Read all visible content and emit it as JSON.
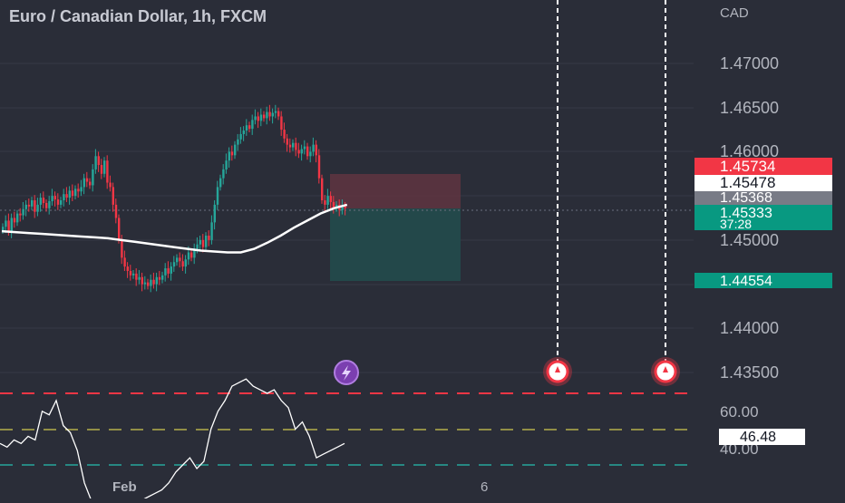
{
  "header": {
    "title": "Euro / Canadian Dollar, 1h, FXCM",
    "currency": "CAD"
  },
  "colors": {
    "background": "#2a2d38",
    "up": "#26a69a",
    "down": "#f23645",
    "ma": "#ffffff",
    "grid": "#363a45",
    "text": "#b2b5be"
  },
  "chart_data": [
    {
      "type": "candlestick",
      "title": "Euro / Canadian Dollar, 1h, FXCM",
      "y_unit": "CAD",
      "ylim": [
        1.432,
        1.4775
      ],
      "y_ticks": [
        "1.47000",
        "1.46500",
        "1.46000",
        "1.45000",
        "1.44000",
        "1.43500"
      ],
      "x_ticks": [
        "Feb",
        "6"
      ],
      "grid": true,
      "candles_close": [
        1.4515,
        1.4522,
        1.451,
        1.4525,
        1.452,
        1.453,
        1.4528,
        1.4535,
        1.454,
        1.4538,
        1.4545,
        1.4532,
        1.454,
        1.4548,
        1.4542,
        1.4536,
        1.4544,
        1.455,
        1.4546,
        1.454,
        1.4545,
        1.4552,
        1.4548,
        1.4556,
        1.455,
        1.4558,
        1.4555,
        1.456,
        1.457,
        1.4566,
        1.4562,
        1.458,
        1.4595,
        1.4585,
        1.4575,
        1.459,
        1.4565,
        1.456,
        1.454,
        1.4525,
        1.45,
        1.448,
        1.447,
        1.4465,
        1.446,
        1.4462,
        1.4455,
        1.4458,
        1.445,
        1.4452,
        1.4448,
        1.4455,
        1.445,
        1.4458,
        1.4455,
        1.446,
        1.4468,
        1.4462,
        1.447,
        1.4475,
        1.448,
        1.4476,
        1.447,
        1.4478,
        1.4486,
        1.448,
        1.449,
        1.4495,
        1.45,
        1.4492,
        1.4505,
        1.45,
        1.452,
        1.454,
        1.456,
        1.457,
        1.458,
        1.459,
        1.46,
        1.4596,
        1.4608,
        1.4614,
        1.462,
        1.4624,
        1.463,
        1.4626,
        1.4636,
        1.464,
        1.4635,
        1.4642,
        1.4638,
        1.4645,
        1.464,
        1.4644,
        1.4646,
        1.464,
        1.4625,
        1.4615,
        1.4608,
        1.4605,
        1.461,
        1.4602,
        1.4598,
        1.4603,
        1.4606,
        1.4595,
        1.46,
        1.4608,
        1.4596,
        1.457,
        1.4545,
        1.454,
        1.455,
        1.4543,
        1.4536,
        1.454,
        1.4534,
        1.4538,
        1.4536
      ],
      "moving_average": [
        1.451,
        1.4509,
        1.4508,
        1.4507,
        1.4506,
        1.4505,
        1.4504,
        1.4503,
        1.4502,
        1.45,
        1.4498,
        1.4496,
        1.4494,
        1.4492,
        1.449,
        1.4488,
        1.4487,
        1.4486,
        1.4486,
        1.449,
        1.4497,
        1.4505,
        1.4514,
        1.4522,
        1.453,
        1.4536,
        1.454
      ],
      "rsi_scale": {
        "ticks": [
          "60.00",
          "40.00"
        ],
        "current": "46.48"
      },
      "rsi_values": [
        46,
        45,
        47,
        46,
        48,
        47,
        55,
        54,
        58,
        51,
        49,
        44,
        35,
        30,
        29,
        30,
        28,
        29,
        28,
        30,
        30,
        31,
        32,
        33,
        35,
        38,
        40,
        42,
        39,
        41,
        50,
        55,
        58,
        62,
        63,
        64,
        62,
        61,
        60,
        61,
        58,
        56,
        50,
        52,
        48,
        42,
        43,
        44,
        45,
        46
      ]
    }
  ],
  "price_labels": {
    "level_a": "1.45734",
    "level_b": "1.45478",
    "level_c": "1.45368",
    "current_price": "1.45333",
    "countdown": "37:28",
    "target": "1.44554",
    "rsi_value": "46.48"
  },
  "axis": {
    "y_labels": [
      "1.47000",
      "1.46500",
      "1.46000",
      "1.45000",
      "1.44000",
      "1.43500"
    ],
    "rsi_labels": [
      "60.00",
      "40.00"
    ],
    "x_labels": [
      "Feb",
      "6"
    ]
  },
  "events": {
    "lightning_icon": "lightning-icon",
    "flag_icon": "canada-flag-icon"
  }
}
